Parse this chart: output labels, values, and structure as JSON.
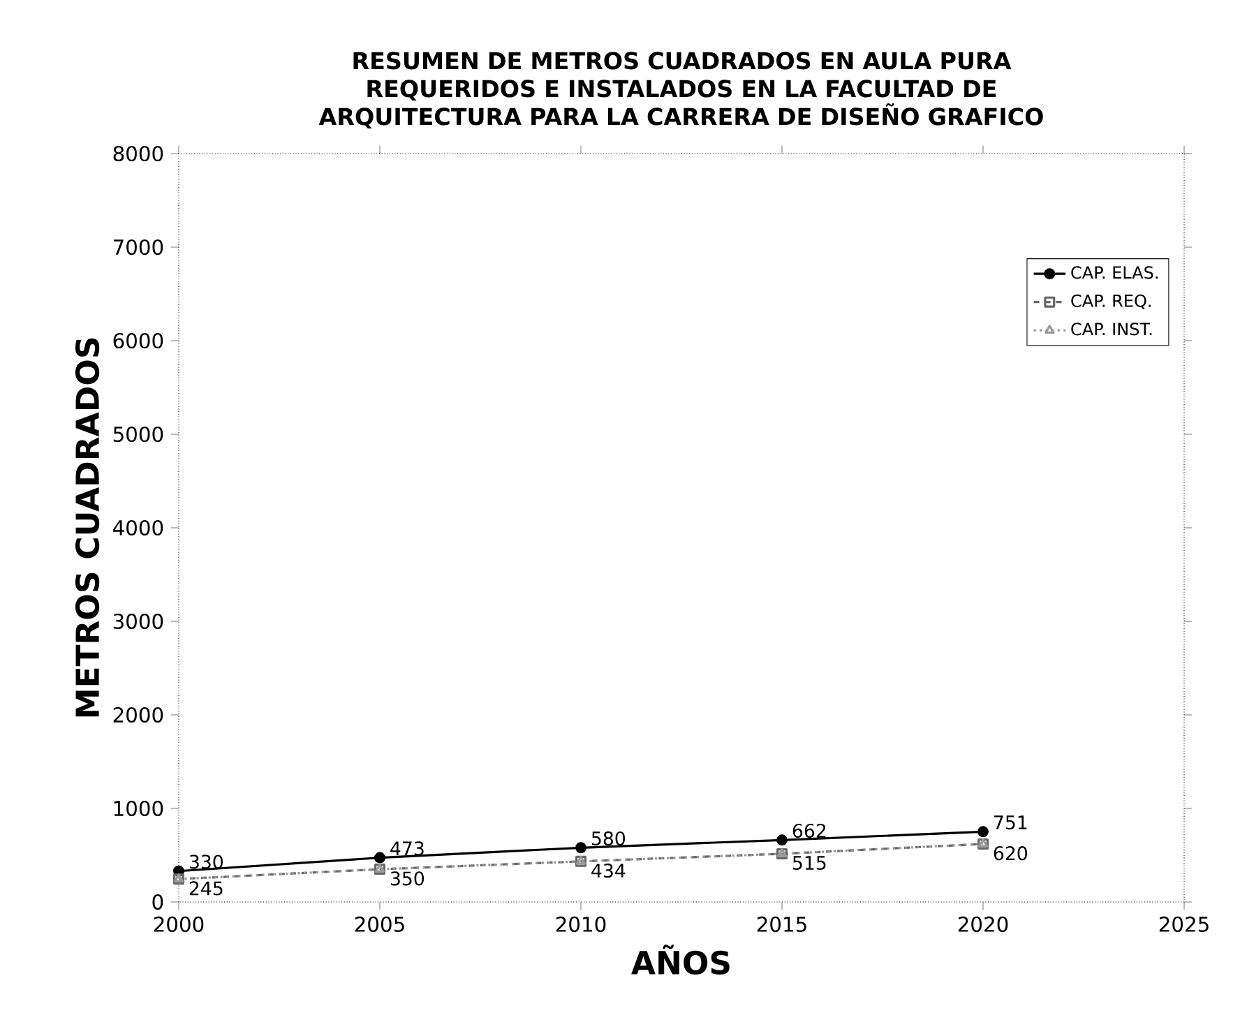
{
  "chart_data": {
    "type": "line",
    "title": "RESUMEN DE METROS CUADRADOS EN AULA PURA REQUERIDOS E INSTALADOS EN LA FACULTAD DE ARQUITECTURA PARA LA CARRERA DE DISEÑO GRAFICO",
    "xlabel": "AÑOS",
    "ylabel": "METROS CUADRADOS",
    "x": [
      2000,
      2005,
      2010,
      2015,
      2020
    ],
    "series": [
      {
        "name": "CAP. ELAS.",
        "color": "#000000",
        "marker": "circle",
        "line_style": "solid",
        "values": [
          330,
          473,
          580,
          662,
          751
        ],
        "value_labels": [
          "330",
          "473",
          "580",
          "662",
          "751"
        ]
      },
      {
        "name": "CAP. REQ.",
        "color": "#666666",
        "marker": "square",
        "line_style": "dashed",
        "values": [
          245,
          350,
          434,
          515,
          620
        ],
        "value_labels": [
          "245",
          "350",
          "434",
          "515",
          "620"
        ]
      },
      {
        "name": "CAP. INST.",
        "color": "#999999",
        "marker": "triangle",
        "line_style": "dotted",
        "values": [
          245,
          350,
          434,
          515,
          620
        ]
      }
    ],
    "xlim": [
      2000,
      2025
    ],
    "xticks": [
      2000,
      2005,
      2010,
      2015,
      2020,
      2025
    ],
    "ylim": [
      0,
      8000
    ],
    "yticks": [
      0,
      1000,
      2000,
      3000,
      4000,
      5000,
      6000,
      7000,
      8000
    ],
    "grid": false,
    "legend": "right"
  }
}
